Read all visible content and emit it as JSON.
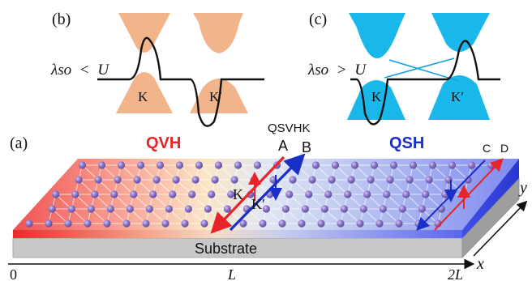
{
  "panels": {
    "b": {
      "tag": "(b)",
      "condition_symbol": "λso",
      "condition_op": "<",
      "condition_rhs": "U",
      "valley_left": "K",
      "valley_right": "K′",
      "cone_color": "#f2b48a"
    },
    "c": {
      "tag": "(c)",
      "condition_symbol": "λso",
      "condition_op": ">",
      "condition_rhs": "U",
      "valley_left": "K",
      "valley_right": "K′",
      "cone_color": "#1ab8ea"
    },
    "a": {
      "tag": "(a)",
      "region_left": "QVH",
      "region_left_color": "#e8242a",
      "region_right": "QSH",
      "region_right_color": "#1a2fc8",
      "interface_label": "QSVHK",
      "edge_a": "A",
      "edge_b": "B",
      "edge_c": "C",
      "edge_d": "D",
      "valley_k": "K",
      "valley_kp": "K′",
      "substrate": "Substrate",
      "axis_x": "x",
      "axis_y": "y",
      "tick_0": "0",
      "tick_l": "L",
      "tick_2l": "2L"
    }
  }
}
